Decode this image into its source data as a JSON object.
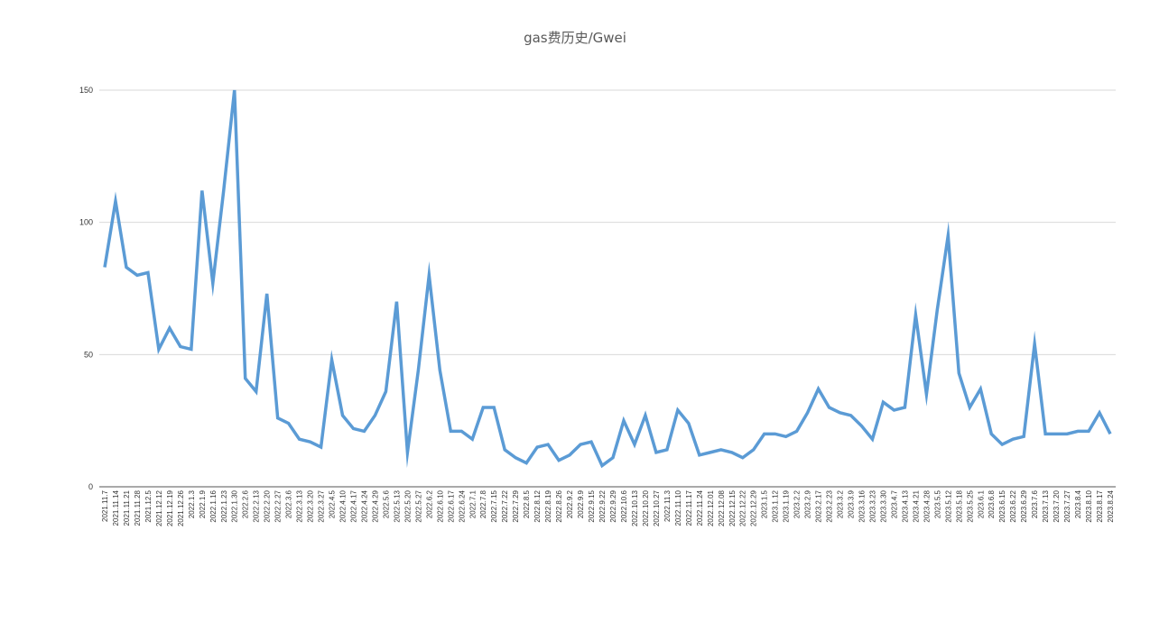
{
  "chart_data": {
    "type": "line",
    "title": "gas费历史/Gwei",
    "xlabel": "",
    "ylabel": "",
    "ylim": [
      0,
      150
    ],
    "yticks": [
      0,
      50,
      100,
      150
    ],
    "grid": true,
    "line_color": "#5B9BD5",
    "categories": [
      "2021.11.7",
      "2021.11.14",
      "2021.11.21",
      "2021.11.28",
      "2021.12.5",
      "2021.12.12",
      "2021.12.19",
      "2021.12.26",
      "2022.1.3",
      "2022.1.9",
      "2022.1.16",
      "2022.1.23",
      "2022.1.30",
      "2022.2.6",
      "2022.2.13",
      "2022.2.20",
      "2022.2.27",
      "2022.3.6",
      "2022.3.13",
      "2022.3.20",
      "2022.3.27",
      "2022.4.5",
      "2022.4.10",
      "2022.4.17",
      "2022.4.24",
      "2022.4.29",
      "2022.5.6",
      "2022.5.13",
      "2022.5.20",
      "2022.5.27",
      "2022.6.2",
      "2022.6.10",
      "2022.6.17",
      "2022.6.24",
      "2022.7.1",
      "2022.7.8",
      "2022.7.15",
      "2022.7.22",
      "2022.7.29",
      "2022.8.5",
      "2022.8.12",
      "2022.8.19",
      "2022.8.26",
      "2022.9.2",
      "2022.9.9",
      "2022.9.15",
      "2022.9.22",
      "2022.9.29",
      "2022.10.6",
      "2022.10.13",
      "2022.10.20",
      "2022.10.27",
      "2022.11.3",
      "2022.11.10",
      "2022.11.17",
      "2022.11.24",
      "2022.12.01",
      "2022.12.08",
      "2022.12.15",
      "2022.12.22",
      "2022.12.29",
      "2023.1.5",
      "2023.1.12",
      "2023.1.19",
      "2023.2.2",
      "2023.2.9",
      "2023.2.17",
      "2023.2.23",
      "2023.3.2",
      "2023.3.9",
      "2023.3.16",
      "2023.3.23",
      "2023.3.30",
      "2023.4.7",
      "2023.4.13",
      "2023.4.21",
      "2023.4.28",
      "2023.5.5",
      "2023.5.12",
      "2023.5.18",
      "2023.5.25",
      "2023.6.1",
      "2023.6.8",
      "2023.6.15",
      "2023.6.22",
      "2023.6.29",
      "2023.7.6",
      "2023.7.13",
      "2023.7.20",
      "2023.7.27",
      "2023.8.4",
      "2023.8.10",
      "2023.8.17",
      "2023.8.24"
    ],
    "series": [
      {
        "values": [
          83,
          108,
          83,
          80,
          81,
          52,
          60,
          53,
          52,
          112,
          77,
          112,
          150,
          41,
          36,
          73,
          26,
          24,
          18,
          17,
          15,
          48,
          27,
          22,
          21,
          27,
          36,
          70,
          13,
          44,
          80,
          44,
          21,
          21,
          18,
          30,
          30,
          14,
          11,
          9,
          15,
          16,
          10,
          12,
          16,
          17,
          8,
          11,
          25,
          16,
          27,
          13,
          14,
          29,
          24,
          12,
          13,
          14,
          13,
          11,
          14,
          20,
          20,
          19,
          21,
          28,
          37,
          30,
          28,
          27,
          23,
          18,
          32,
          29,
          30,
          65,
          35,
          67,
          95,
          43,
          30,
          37,
          20,
          16,
          18,
          19,
          54,
          20,
          20,
          20,
          21,
          21,
          28,
          20
        ]
      }
    ]
  }
}
